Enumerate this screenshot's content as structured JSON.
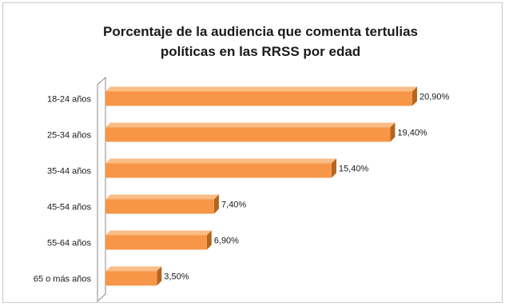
{
  "chart_data": {
    "type": "bar",
    "orientation": "horizontal",
    "title": "Porcentaje de la audiencia que comenta tertulias políticas en las RRSS por edad",
    "title_lines": [
      "Porcentaje de la audiencia que comenta tertulias",
      "políticas en las RRSS por edad"
    ],
    "categories": [
      "18-24 años",
      "25-34 años",
      "35-44 años",
      "45-54 años",
      "55-64 años",
      "65 o más años"
    ],
    "values": [
      20.9,
      19.4,
      15.4,
      7.4,
      6.9,
      3.5
    ],
    "data_labels": [
      "20,90%",
      "19,40%",
      "15,40%",
      "7,40%",
      "6,90%",
      "3,50%"
    ],
    "xlim": [
      0,
      21.5
    ],
    "grid": false,
    "legend": "none",
    "colors": {
      "bar_face": "#f79646",
      "bar_top": "#fbbd85",
      "bar_side": "#b5641f",
      "axis_wall": "#8a8a8a"
    }
  }
}
